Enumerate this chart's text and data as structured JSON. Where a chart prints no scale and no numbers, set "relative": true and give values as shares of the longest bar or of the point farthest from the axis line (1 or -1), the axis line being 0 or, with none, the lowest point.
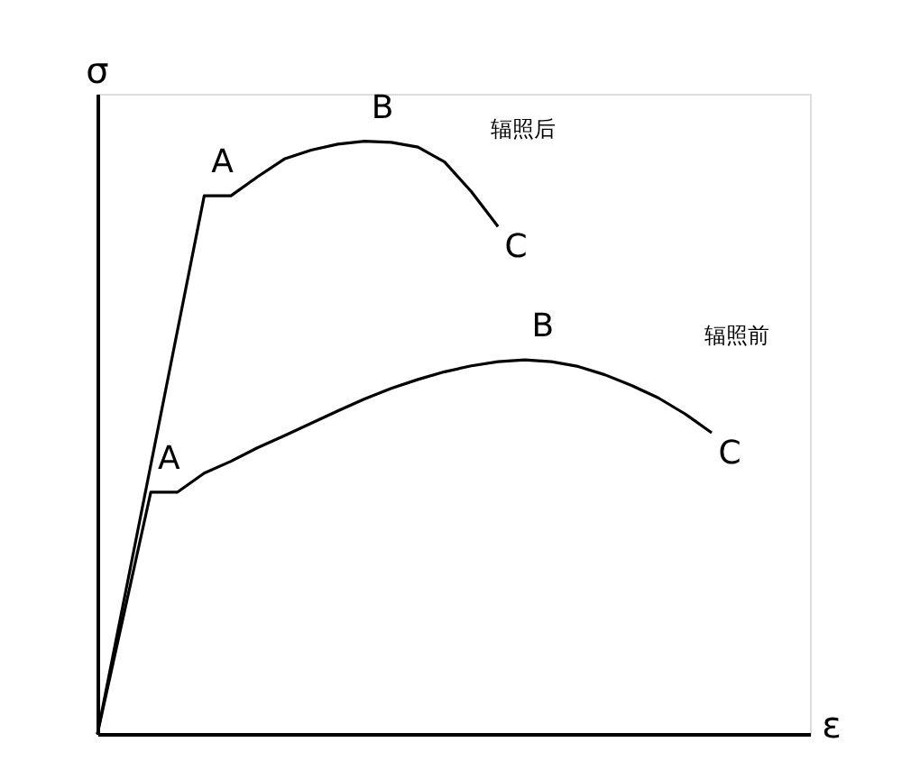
{
  "chart_data": {
    "type": "line",
    "relative": true,
    "xlabel": "ε",
    "ylabel": "σ",
    "legend": false,
    "marker": "none",
    "line_style": "solid",
    "categories": [
      null,
      null,
      null,
      null,
      null,
      null,
      null,
      null,
      null,
      null,
      null,
      null,
      null,
      null,
      null,
      null,
      null,
      null,
      null,
      null,
      null,
      null,
      null,
      null
    ],
    "series": [
      {
        "name": "辐照后",
        "color": "#000000",
        "values": [
          0,
          0.227,
          0.454,
          0.681,
          0.908,
          0.908,
          0.94,
          0.97,
          0.985,
          0.995,
          1.0,
          0.998,
          0.99,
          0.965,
          0.915,
          0.856,
          null,
          null,
          null,
          null,
          null,
          null,
          null,
          null
        ]
      },
      {
        "name": "辐照前",
        "color": "#000000",
        "values": [
          0,
          0.204,
          0.408,
          0.408,
          0.44,
          0.46,
          0.483,
          0.503,
          0.524,
          0.545,
          0.565,
          0.583,
          0.598,
          0.611,
          0.621,
          0.628,
          0.631,
          0.628,
          0.62,
          0.606,
          0.588,
          0.567,
          0.54,
          0.508
        ]
      }
    ],
    "annotations": [
      {
        "text": "A",
        "y": 0.908
      },
      {
        "text": "B",
        "y": 1.0
      },
      "C",
      {
        "text": "A",
        "y": 0.408
      },
      {
        "text": "B",
        "y": 0.631
      },
      "C"
    ]
  }
}
